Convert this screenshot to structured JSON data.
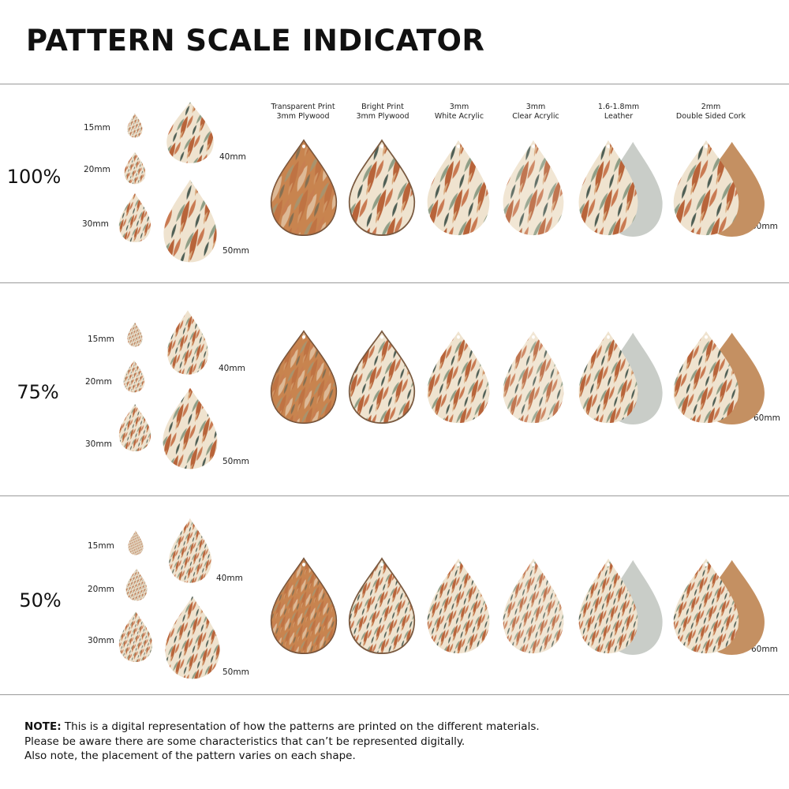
{
  "title": "PATTERN SCALE INDICATOR",
  "materials": [
    {
      "line1": "Transparent Print",
      "line2": "3mm Plywood"
    },
    {
      "line1": "Bright Print",
      "line2": "3mm Plywood"
    },
    {
      "line1": "3mm",
      "line2": "White Acrylic"
    },
    {
      "line1": "3mm",
      "line2": "Clear Acrylic"
    },
    {
      "line1": "1.6-1.8mm",
      "line2": "Leather"
    },
    {
      "line1": "2mm",
      "line2": "Double Sided Cork"
    }
  ],
  "sections": [
    {
      "scale": "100%",
      "sizes": {
        "s15": "15mm",
        "s20": "20mm",
        "s30": "30mm",
        "s40": "40mm",
        "s50": "50mm",
        "s60": "60mm"
      }
    },
    {
      "scale": "75%",
      "sizes": {
        "s15": "15mm",
        "s20": "20mm",
        "s30": "30mm",
        "s40": "40mm",
        "s50": "50mm",
        "s60": "60mm"
      }
    },
    {
      "scale": "50%",
      "sizes": {
        "s15": "15mm",
        "s20": "20mm",
        "s30": "30mm",
        "s40": "40mm",
        "s50": "50mm",
        "s60": "60mm"
      }
    }
  ],
  "note": {
    "label": "NOTE:",
    "line1": " This is a digital representation of how the patterns are printed on the different materials.",
    "line2": "Please be aware there are some characteristics that can’t be represented digitally.",
    "line3": "Also note, the placement of the pattern varies on each shape."
  },
  "colors": {
    "rust": "#b8643a",
    "terracotta": "#c97a52",
    "sage": "#8f9e86",
    "cream": "#efe3cf",
    "sand": "#d8a77a",
    "dark_green": "#4f5f55",
    "plywood": "#c8844f",
    "cork": "#c49062",
    "suede": "#c9cdc8"
  }
}
